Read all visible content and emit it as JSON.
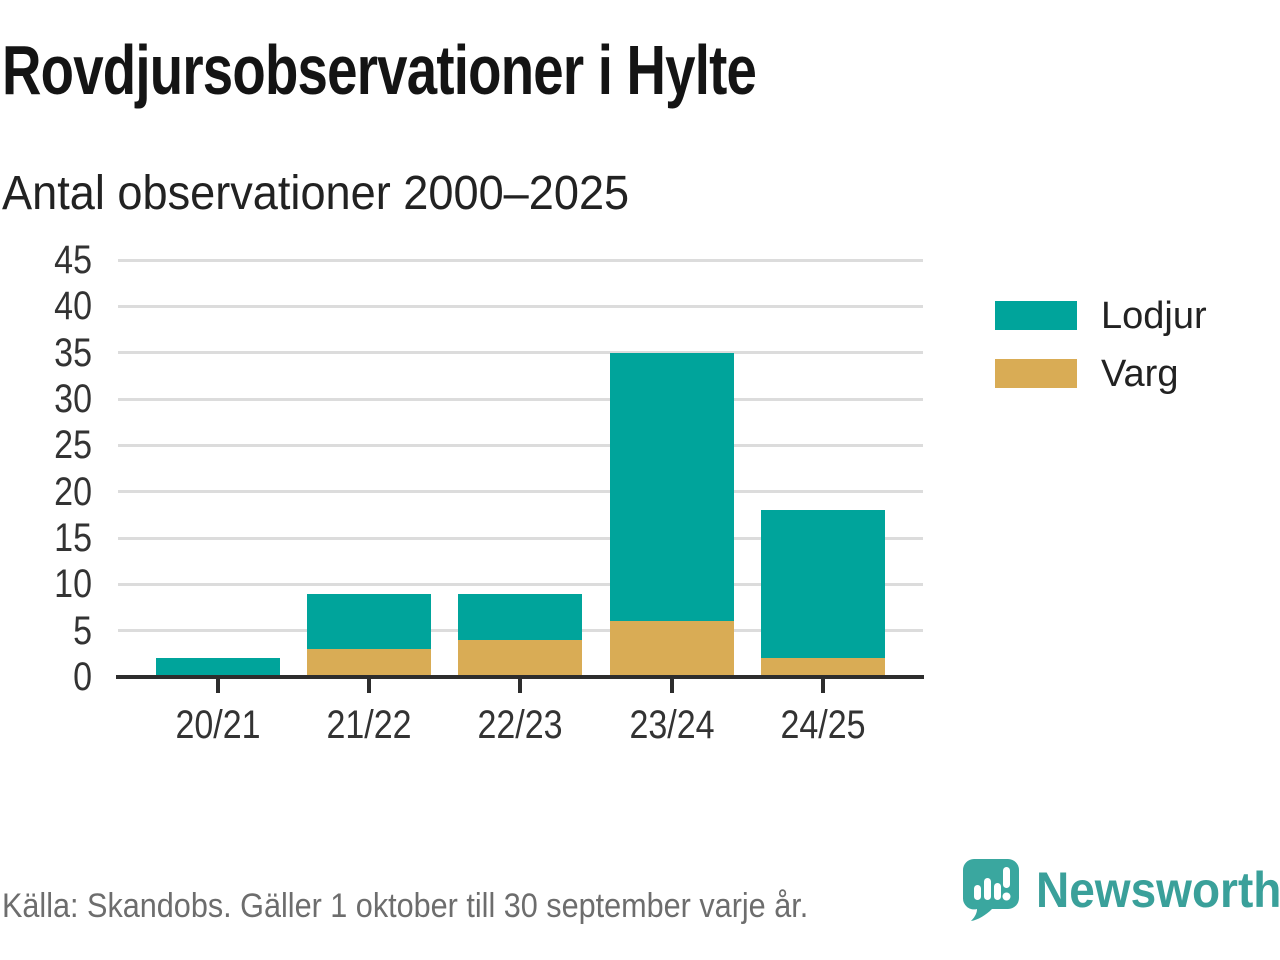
{
  "header": {
    "title": "Rovdjursobservationer i Hylte",
    "subtitle": "Antal observationer 2000–2025"
  },
  "chart_data": {
    "type": "bar",
    "stacked": true,
    "title": "Rovdjursobservationer i Hylte",
    "subtitle": "Antal observationer 2000–2025",
    "categories": [
      "20/21",
      "21/22",
      "22/23",
      "23/24",
      "24/25"
    ],
    "series": [
      {
        "name": "Lodjur",
        "color": "#00a49b",
        "values": [
          2,
          6,
          5,
          29,
          16
        ]
      },
      {
        "name": "Varg",
        "color": "#d9ac55",
        "values": [
          0,
          3,
          4,
          6,
          2
        ]
      }
    ],
    "stack_order_bottom_to_top": [
      "Varg",
      "Lodjur"
    ],
    "totals": [
      2,
      9,
      9,
      35,
      18
    ],
    "xlabel": "",
    "ylabel": "",
    "ylim": [
      0,
      45
    ],
    "yticks": [
      0,
      5,
      10,
      15,
      20,
      25,
      30,
      35,
      40,
      45
    ],
    "grid": "horizontal",
    "legend_position": "right"
  },
  "legend": {
    "items": [
      {
        "label": "Lodjur",
        "color": "#00a49b"
      },
      {
        "label": "Varg",
        "color": "#d9ac55"
      }
    ]
  },
  "footer": {
    "source_note": "Källa: Skandobs. Gäller 1 oktober till 30 september varje år.",
    "brand_name": "Newsworthy"
  },
  "colors": {
    "bar_teal": "#00a49b",
    "bar_gold": "#d9ac55",
    "gridline": "#dcdcdc",
    "axis_line": "#2d2d2d",
    "axis_text": "#333333",
    "title_text": "#141414",
    "footer_text": "#6d6d6d",
    "brand_teal": "#3aa09a"
  }
}
